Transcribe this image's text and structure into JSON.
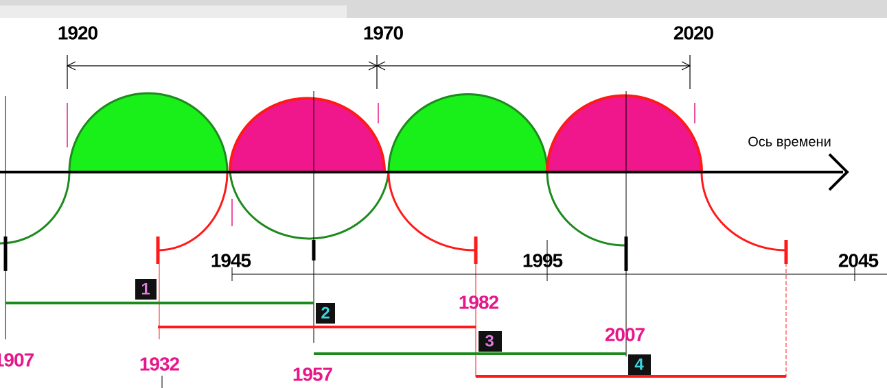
{
  "top_labels": [
    "1920",
    "1970",
    "2020"
  ],
  "axis_label": "Ось времени",
  "mid_labels": [
    "1945",
    "1995",
    "2045"
  ],
  "markers": [
    "1",
    "2",
    "3",
    "4"
  ],
  "years": [
    "1982",
    "2007",
    "1907",
    "1932",
    "1957"
  ]
}
